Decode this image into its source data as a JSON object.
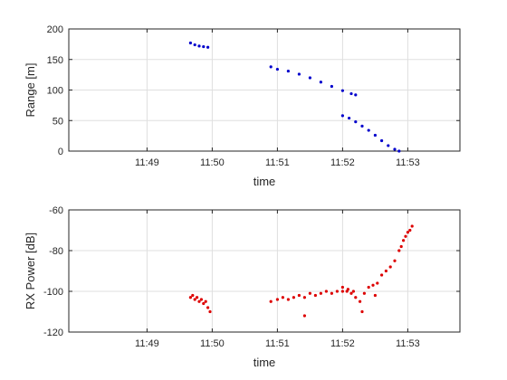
{
  "chart_data": [
    {
      "type": "scatter",
      "xlabel": "time",
      "ylabel": "Range [m]",
      "ylim": [
        0,
        200
      ],
      "xlim": [
        "11:49",
        "11:53"
      ],
      "x_ticks": [
        "11:49",
        "11:50",
        "11:51",
        "11:52",
        "11:53"
      ],
      "y_ticks": [
        0,
        50,
        100,
        150,
        200
      ],
      "grid": true,
      "color": "#0000cc",
      "series": [
        {
          "points": [
            [
              "11:49:40",
              177
            ],
            [
              "11:49:44",
              174
            ],
            [
              "11:49:48",
              172
            ],
            [
              "11:49:52",
              171
            ],
            [
              "11:49:56",
              170
            ],
            [
              "11:50:54",
              138
            ],
            [
              "11:51:00",
              134
            ],
            [
              "11:51:10",
              131
            ],
            [
              "11:51:20",
              126
            ],
            [
              "11:51:30",
              120
            ],
            [
              "11:51:40",
              113
            ],
            [
              "11:51:50",
              106
            ],
            [
              "11:52:00",
              99
            ],
            [
              "11:52:08",
              94
            ],
            [
              "11:52:12",
              92
            ],
            [
              "11:52:00",
              58
            ],
            [
              "11:52:06",
              54
            ],
            [
              "11:52:12",
              48
            ],
            [
              "11:52:18",
              41
            ],
            [
              "11:52:24",
              34
            ],
            [
              "11:52:30",
              26
            ],
            [
              "11:52:36",
              17
            ],
            [
              "11:52:42",
              9
            ],
            [
              "11:52:48",
              3
            ],
            [
              "11:52:52",
              0
            ]
          ]
        }
      ]
    },
    {
      "type": "scatter",
      "xlabel": "time",
      "ylabel": "RX Power [dB]",
      "ylim": [
        -120,
        -60
      ],
      "xlim": [
        "11:49",
        "11:53"
      ],
      "x_ticks": [
        "11:49",
        "11:50",
        "11:51",
        "11:52",
        "11:53"
      ],
      "y_ticks": [
        -120,
        -100,
        -80,
        -60
      ],
      "grid": true,
      "color": "#dd0000",
      "series": [
        {
          "points": [
            [
              "11:49:40",
              -103
            ],
            [
              "11:49:42",
              -102
            ],
            [
              "11:49:44",
              -104
            ],
            [
              "11:49:46",
              -103
            ],
            [
              "11:49:48",
              -105
            ],
            [
              "11:49:50",
              -104
            ],
            [
              "11:49:52",
              -106
            ],
            [
              "11:49:54",
              -105
            ],
            [
              "11:49:56",
              -108
            ],
            [
              "11:49:58",
              -110
            ],
            [
              "11:50:54",
              -105
            ],
            [
              "11:51:00",
              -104
            ],
            [
              "11:51:05",
              -103
            ],
            [
              "11:51:10",
              -104
            ],
            [
              "11:51:15",
              -103
            ],
            [
              "11:51:20",
              -102
            ],
            [
              "11:51:25",
              -103
            ],
            [
              "11:51:30",
              -101
            ],
            [
              "11:51:35",
              -102
            ],
            [
              "11:51:40",
              -101
            ],
            [
              "11:51:45",
              -100
            ],
            [
              "11:51:50",
              -101
            ],
            [
              "11:51:55",
              -100
            ],
            [
              "11:52:00",
              -100
            ],
            [
              "11:52:05",
              -99
            ],
            [
              "11:52:10",
              -100
            ],
            [
              "11:51:25",
              -112
            ],
            [
              "11:52:00",
              -98
            ],
            [
              "11:52:04",
              -100
            ],
            [
              "11:52:08",
              -101
            ],
            [
              "11:52:12",
              -103
            ],
            [
              "11:52:16",
              -105
            ],
            [
              "11:52:18",
              -110
            ],
            [
              "11:52:20",
              -101
            ],
            [
              "11:52:24",
              -98
            ],
            [
              "11:52:28",
              -97
            ],
            [
              "11:52:30",
              -102
            ],
            [
              "11:52:32",
              -96
            ],
            [
              "11:52:36",
              -92
            ],
            [
              "11:52:40",
              -90
            ],
            [
              "11:52:44",
              -88
            ],
            [
              "11:52:48",
              -85
            ],
            [
              "11:52:52",
              -80
            ],
            [
              "11:52:54",
              -78
            ],
            [
              "11:52:56",
              -75
            ],
            [
              "11:52:58",
              -73
            ],
            [
              "11:53:00",
              -71
            ],
            [
              "11:53:02",
              -70
            ],
            [
              "11:53:04",
              -68
            ]
          ]
        }
      ]
    }
  ]
}
